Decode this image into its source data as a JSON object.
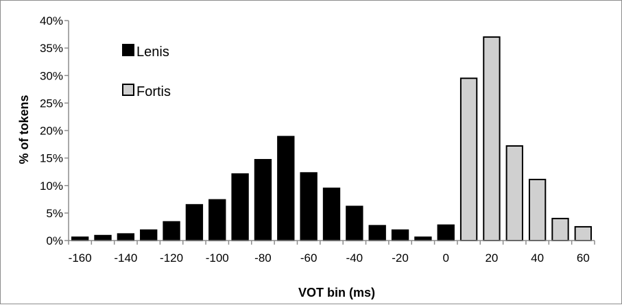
{
  "chart_data": {
    "type": "bar",
    "xlabel": "VOT bin (ms)",
    "ylabel": "% of tokens",
    "ylim": [
      0,
      40
    ],
    "y_ticks": [
      "0%",
      "5%",
      "10%",
      "15%",
      "20%",
      "25%",
      "30%",
      "35%",
      "40%"
    ],
    "x_tick_labels": [
      "-160",
      "-140",
      "-120",
      "-100",
      "-80",
      "-60",
      "-40",
      "-20",
      "0",
      "20",
      "40",
      "60"
    ],
    "grid": false,
    "legend_position": "top-left",
    "categories": [
      -160,
      -150,
      -140,
      -130,
      -120,
      -110,
      -100,
      -90,
      -80,
      -70,
      -60,
      -50,
      -40,
      -30,
      -20,
      -10,
      0,
      10,
      20,
      30,
      40,
      50,
      60
    ],
    "series": [
      {
        "name": "Lenis",
        "color": "#000000",
        "values": [
          0.6,
          0.9,
          1.2,
          1.9,
          3.4,
          6.5,
          7.4,
          12.1,
          14.7,
          18.9,
          12.3,
          9.5,
          6.2,
          2.7,
          1.9,
          0.6,
          2.8,
          null,
          null,
          null,
          null,
          null,
          null
        ]
      },
      {
        "name": "Fortis",
        "color": "#d0d0d0",
        "values": [
          null,
          null,
          null,
          null,
          null,
          null,
          null,
          null,
          null,
          null,
          null,
          null,
          null,
          null,
          null,
          null,
          null,
          29.5,
          37.0,
          17.2,
          11.1,
          4.0,
          2.5
        ]
      }
    ]
  }
}
